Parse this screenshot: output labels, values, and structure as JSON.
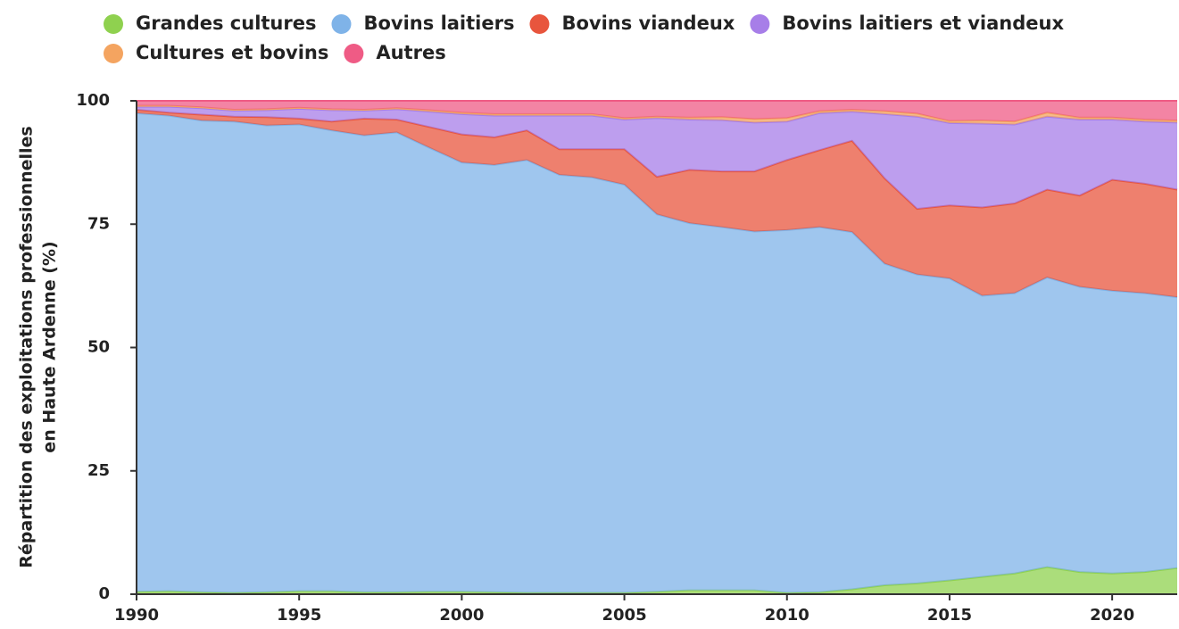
{
  "chart_data": {
    "type": "stacked_area",
    "ylabel": [
      "Répartition des exploitations professionnelles",
      "en Haute Ardenne (%)"
    ],
    "x": [
      1990,
      1991,
      1992,
      1993,
      1994,
      1995,
      1996,
      1997,
      1998,
      1999,
      2000,
      2001,
      2002,
      2003,
      2004,
      2005,
      2006,
      2007,
      2008,
      2009,
      2010,
      2011,
      2012,
      2013,
      2014,
      2015,
      2016,
      2017,
      2018,
      2019,
      2020,
      2021,
      2022
    ],
    "xlim": [
      1990,
      2022
    ],
    "xticks": [
      1990,
      1995,
      2000,
      2005,
      2010,
      2015,
      2020
    ],
    "ylim": [
      0,
      100
    ],
    "yticks": [
      0,
      25,
      50,
      75,
      100
    ],
    "legend": "top",
    "series": [
      {
        "name": "Grandes cultures",
        "color": "#8fd14f",
        "values": [
          0.5,
          0.6,
          0.4,
          0.3,
          0.4,
          0.6,
          0.6,
          0.4,
          0.4,
          0.5,
          0.5,
          0.4,
          0.3,
          0.3,
          0.3,
          0.3,
          0.5,
          0.8,
          0.8,
          0.8,
          0.3,
          0.4,
          1.0,
          1.8,
          2.2,
          2.8,
          3.5,
          4.2,
          5.5,
          4.5,
          4.2,
          4.5,
          5.3
        ]
      },
      {
        "name": "Bovins laitiers",
        "color": "#7fb3e8",
        "values": [
          97.0,
          96.4,
          95.6,
          95.5,
          94.6,
          94.6,
          93.4,
          92.6,
          93.2,
          90.0,
          87.0,
          86.6,
          87.7,
          84.7,
          84.2,
          82.7,
          76.5,
          74.4,
          73.6,
          72.7,
          73.5,
          74.0,
          72.4,
          65.2,
          62.6,
          61.2,
          57.0,
          56.8,
          58.7,
          57.8,
          57.3,
          56.5,
          54.9
        ]
      },
      {
        "name": "Bovins viandeux",
        "color": "#e8553d",
        "values": [
          0.7,
          0.6,
          1.2,
          1.0,
          1.7,
          1.2,
          1.8,
          3.4,
          2.6,
          4.2,
          5.7,
          5.6,
          6.0,
          5.2,
          5.7,
          7.2,
          7.6,
          10.8,
          11.3,
          12.2,
          14.2,
          15.6,
          18.5,
          17.3,
          13.3,
          14.8,
          17.9,
          18.2,
          17.8,
          18.5,
          22.5,
          22.2,
          21.8
        ]
      },
      {
        "name": "Bovins laitiers et viandeux",
        "color": "#a77ee8",
        "values": [
          0.6,
          1.2,
          1.3,
          1.2,
          1.4,
          2.0,
          2.3,
          1.6,
          2.1,
          3.1,
          4.1,
          4.4,
          3.0,
          6.8,
          6.8,
          6.0,
          11.9,
          10.2,
          10.4,
          9.9,
          7.8,
          7.5,
          5.9,
          13.0,
          18.7,
          16.7,
          17.0,
          16.0,
          14.8,
          15.4,
          12.2,
          12.6,
          13.6
        ]
      },
      {
        "name": "Cultures et bovins",
        "color": "#f4a460",
        "values": [
          0.2,
          0.2,
          0.2,
          0.2,
          0.2,
          0.2,
          0.2,
          0.2,
          0.2,
          0.3,
          0.3,
          0.3,
          0.3,
          0.3,
          0.3,
          0.3,
          0.3,
          0.4,
          0.6,
          0.7,
          0.7,
          0.4,
          0.4,
          0.6,
          0.6,
          0.4,
          0.6,
          0.6,
          0.8,
          0.4,
          0.4,
          0.4,
          0.4
        ]
      },
      {
        "name": "Autres",
        "color": "#ef5b85",
        "values": [
          1.0,
          1.0,
          1.3,
          1.8,
          1.7,
          1.4,
          1.7,
          1.8,
          1.5,
          1.9,
          2.4,
          2.7,
          2.7,
          2.7,
          2.7,
          3.5,
          3.2,
          3.4,
          3.3,
          3.7,
          3.5,
          2.1,
          1.8,
          2.1,
          2.6,
          4.1,
          4.0,
          4.2,
          2.4,
          3.4,
          3.4,
          3.8,
          4.0
        ]
      }
    ]
  }
}
